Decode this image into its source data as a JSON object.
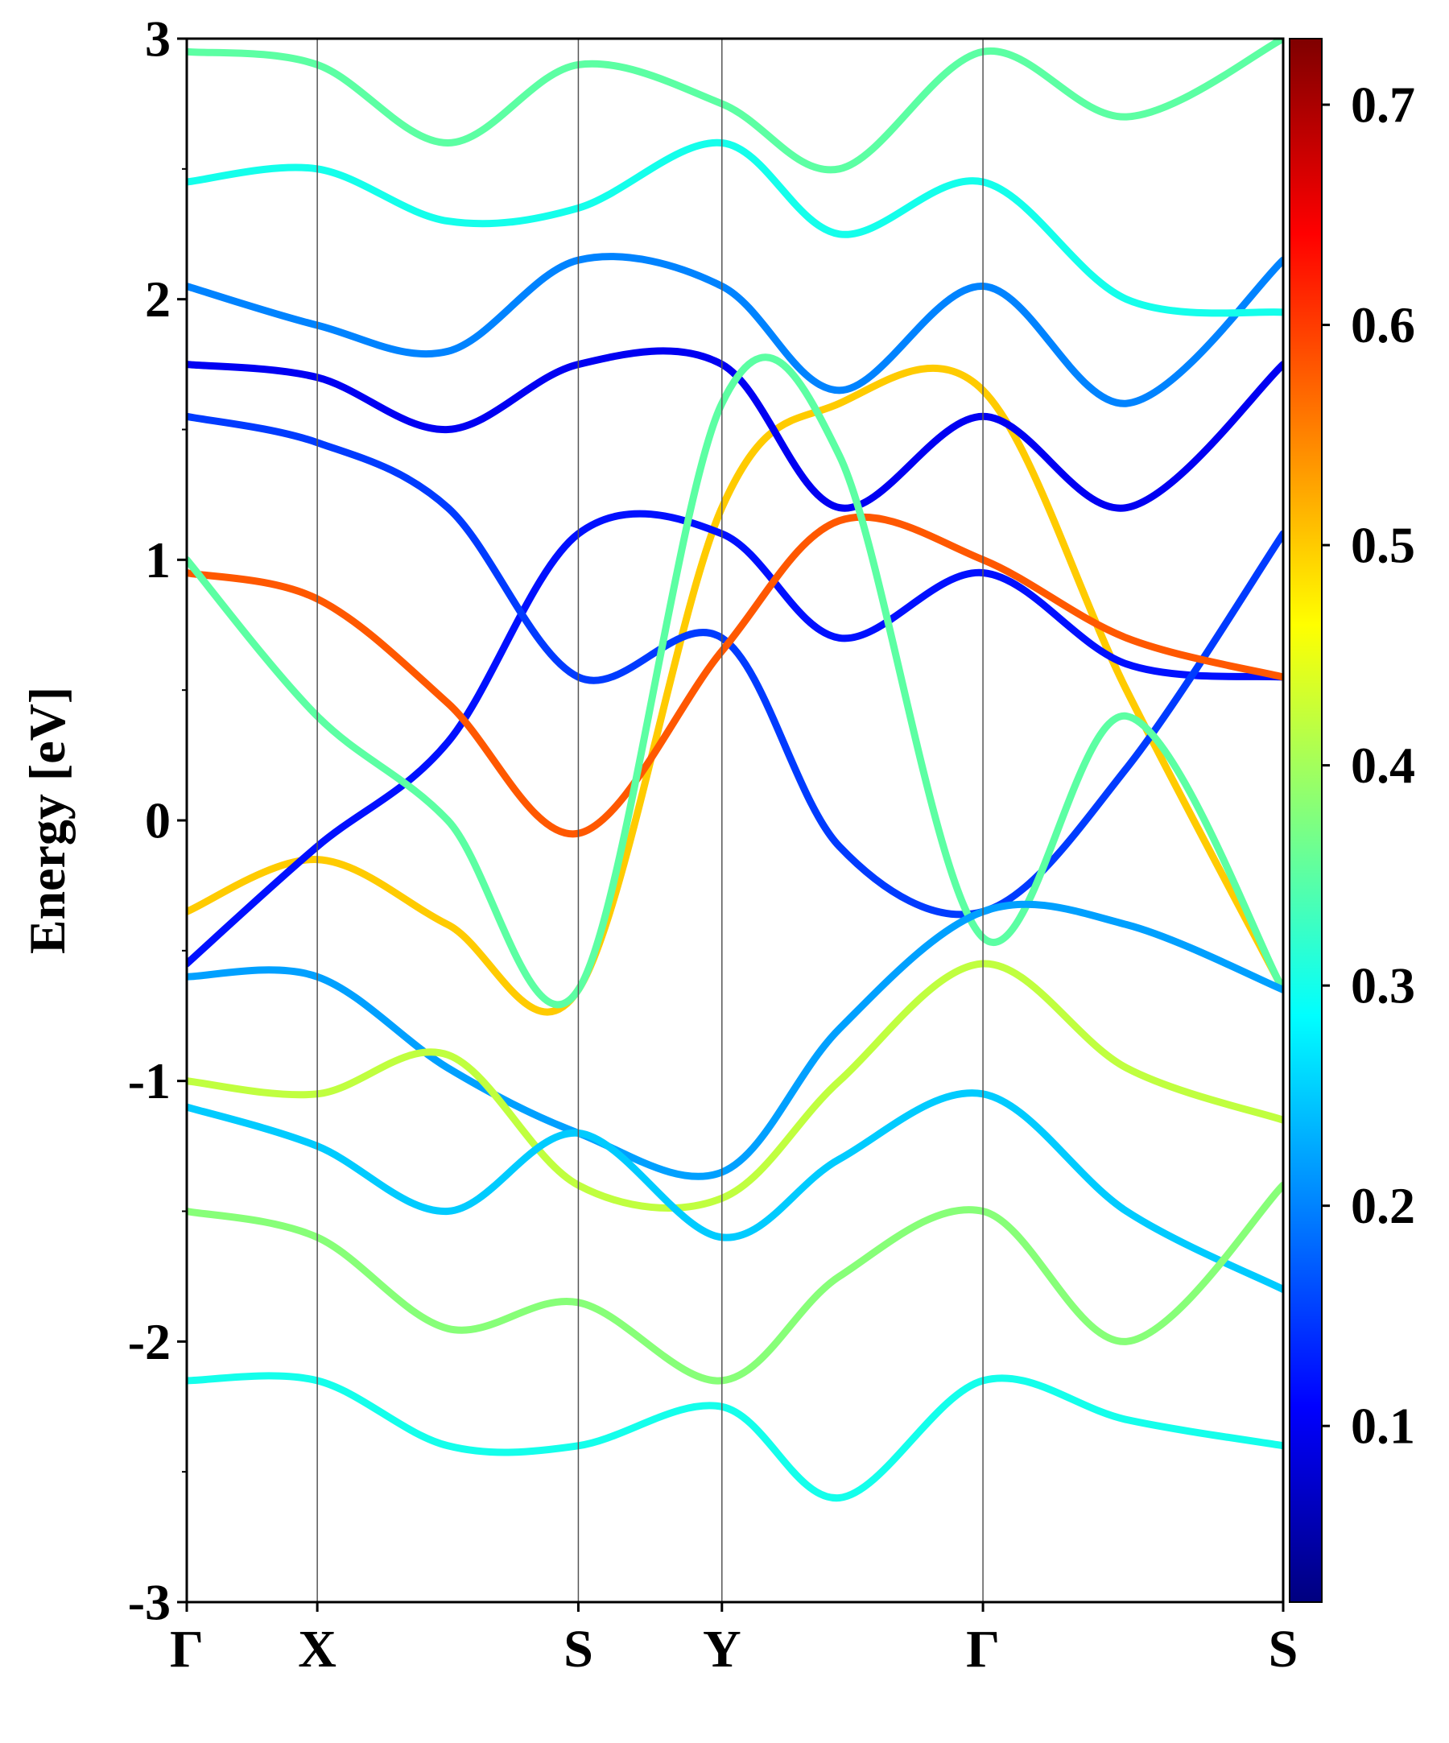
{
  "chart_data": {
    "type": "line",
    "title": "",
    "ylabel": "Energy [eV]",
    "xlabel": "",
    "ylim": [
      -3,
      3
    ],
    "yticks": [
      -3,
      -2,
      -1,
      0,
      1,
      2,
      3
    ],
    "k_path": {
      "labels": [
        "Γ",
        "X",
        "S",
        "Y",
        "Γ",
        "S"
      ],
      "positions": [
        0.0,
        0.5,
        1.5,
        2.05,
        3.05,
        4.2
      ]
    },
    "colorbar": {
      "colormap": "jet",
      "range": [
        0.02,
        0.73
      ],
      "ticks": [
        0.1,
        0.2,
        0.3,
        0.4,
        0.5,
        0.6,
        0.7
      ],
      "tick_labels": [
        "0.1",
        "0.2",
        "0.3",
        "0.4",
        "0.5",
        "0.6",
        "0.7"
      ]
    },
    "grid": false,
    "series": [
      {
        "k": [
          0,
          0.5,
          1.0,
          1.5,
          2.05,
          2.5,
          3.05,
          3.6,
          4.2
        ],
        "energy": [
          -0.35,
          -0.15,
          -0.4,
          -0.65,
          1.2,
          1.6,
          1.65,
          0.5,
          -0.65
        ],
        "weight": 0.5
      },
      {
        "k": [
          0,
          0.5,
          1.0,
          1.5,
          2.05,
          2.5,
          3.05,
          3.6,
          4.2
        ],
        "energy": [
          -0.55,
          -0.1,
          0.3,
          1.1,
          1.1,
          0.7,
          0.95,
          0.6,
          0.55
        ],
        "weight": 0.12
      },
      {
        "k": [
          0,
          0.5,
          1.0,
          1.5,
          2.05,
          2.5,
          3.05,
          3.6,
          4.2
        ],
        "energy": [
          1.55,
          1.45,
          1.2,
          0.55,
          0.7,
          -0.1,
          -0.35,
          0.2,
          1.1
        ],
        "weight": 0.15
      },
      {
        "k": [
          0,
          0.5,
          1.0,
          1.5,
          2.05,
          2.5,
          3.05,
          3.6,
          4.2
        ],
        "energy": [
          1.75,
          1.7,
          1.5,
          1.75,
          1.75,
          1.2,
          1.55,
          1.2,
          1.75
        ],
        "weight": 0.1
      },
      {
        "k": [
          0,
          0.5,
          1.0,
          1.5,
          2.05,
          2.5,
          3.05,
          3.6,
          4.2
        ],
        "energy": [
          0.95,
          0.85,
          0.45,
          -0.05,
          0.65,
          1.15,
          1.0,
          0.7,
          0.55
        ],
        "weight": 0.58
      },
      {
        "k": [
          0,
          0.5,
          1.0,
          1.5,
          2.05,
          2.5,
          3.05,
          3.6,
          4.2
        ],
        "energy": [
          1.0,
          0.4,
          0.0,
          -0.65,
          1.6,
          1.4,
          -0.45,
          0.4,
          -0.65
        ],
        "weight": 0.35
      },
      {
        "k": [
          0,
          0.5,
          1.0,
          1.5,
          2.05,
          2.5,
          3.05,
          3.6,
          4.2
        ],
        "energy": [
          -0.6,
          -0.6,
          -0.95,
          -1.2,
          -1.35,
          -0.8,
          -0.35,
          -0.4,
          -0.65
        ],
        "weight": 0.22
      },
      {
        "k": [
          0,
          0.5,
          1.0,
          1.5,
          2.05,
          2.5,
          3.05,
          3.6,
          4.2
        ],
        "energy": [
          -1.0,
          -1.05,
          -0.9,
          -1.4,
          -1.45,
          -1.0,
          -0.55,
          -0.95,
          -1.15
        ],
        "weight": 0.42
      },
      {
        "k": [
          0,
          0.5,
          1.0,
          1.5,
          2.05,
          2.5,
          3.05,
          3.6,
          4.2
        ],
        "energy": [
          -1.1,
          -1.25,
          -1.5,
          -1.2,
          -1.6,
          -1.3,
          -1.05,
          -1.5,
          -1.8
        ],
        "weight": 0.25
      },
      {
        "k": [
          0,
          0.5,
          1.0,
          1.5,
          2.05,
          2.5,
          3.05,
          3.6,
          4.2
        ],
        "energy": [
          -1.5,
          -1.6,
          -1.95,
          -1.85,
          -2.15,
          -1.75,
          -1.5,
          -2.0,
          -1.4
        ],
        "weight": 0.38
      },
      {
        "k": [
          0,
          0.5,
          1.0,
          1.5,
          2.05,
          2.5,
          3.05,
          3.6,
          4.2
        ],
        "energy": [
          -2.15,
          -2.15,
          -2.4,
          -2.4,
          -2.25,
          -2.6,
          -2.15,
          -2.3,
          -2.4
        ],
        "weight": 0.3
      },
      {
        "k": [
          0,
          0.5,
          1.0,
          1.5,
          2.05,
          2.5,
          3.05,
          3.6,
          4.2
        ],
        "energy": [
          2.05,
          1.9,
          1.8,
          2.15,
          2.05,
          1.65,
          2.05,
          1.6,
          2.15
        ],
        "weight": 0.2
      },
      {
        "k": [
          0,
          0.5,
          1.0,
          1.5,
          2.05,
          2.5,
          3.05,
          3.6,
          4.2
        ],
        "energy": [
          2.45,
          2.5,
          2.3,
          2.35,
          2.6,
          2.25,
          2.45,
          2.0,
          1.95
        ],
        "weight": 0.3
      },
      {
        "k": [
          0,
          0.5,
          1.0,
          1.5,
          2.05,
          2.5,
          3.05,
          3.6,
          4.2
        ],
        "energy": [
          2.95,
          2.9,
          2.6,
          2.9,
          2.75,
          2.5,
          2.95,
          2.7,
          3.0
        ],
        "weight": 0.35
      }
    ]
  }
}
